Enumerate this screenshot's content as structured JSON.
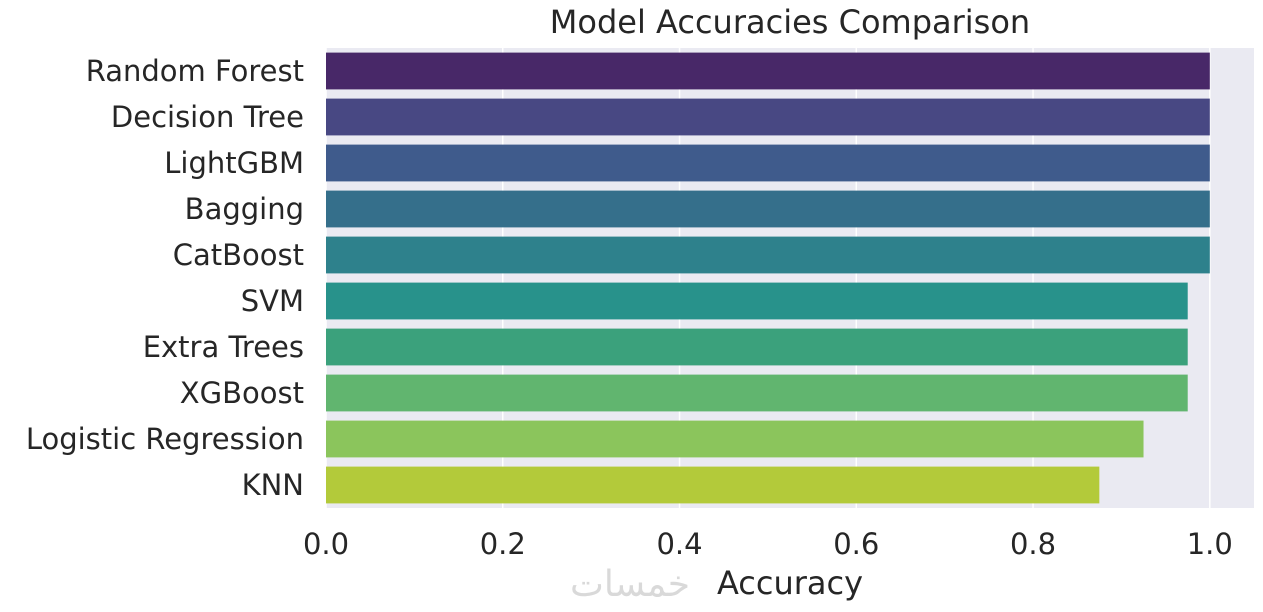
{
  "chart_data": {
    "type": "bar",
    "orientation": "horizontal",
    "title": "Model Accuracies Comparison",
    "xlabel": "Accuracy",
    "ylabel": "",
    "xlim": [
      0.0,
      1.05
    ],
    "xticks": [
      "0.0",
      "0.2",
      "0.4",
      "0.6",
      "0.8",
      "1.0"
    ],
    "xtick_values": [
      0.0,
      0.2,
      0.4,
      0.6,
      0.8,
      1.0
    ],
    "grid": true,
    "categories": [
      "Random Forest",
      "Decision Tree",
      "LightGBM",
      "Bagging",
      "CatBoost",
      "SVM",
      "Extra Trees",
      "XGBoost",
      "Logistic Regression",
      "KNN"
    ],
    "values": [
      1.0,
      1.0,
      1.0,
      1.0,
      1.0,
      0.975,
      0.975,
      0.975,
      0.925,
      0.875
    ],
    "colors": [
      "#482868",
      "#484883",
      "#3f5b8c",
      "#356f8b",
      "#2e818c",
      "#28928b",
      "#3ba17c",
      "#61b56f",
      "#8bc55c",
      "#b3ca3a"
    ]
  },
  "watermark": "خمسات"
}
